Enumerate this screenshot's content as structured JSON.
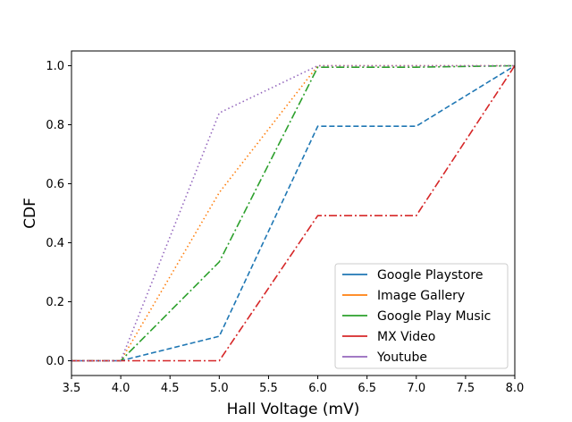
{
  "chart_data": {
    "type": "line",
    "title": "",
    "xlabel": "Hall Voltage (mV)",
    "ylabel": "CDF",
    "xlim": [
      3.5,
      8.0
    ],
    "ylim": [
      -0.05,
      1.05
    ],
    "xticks": [
      "3.5",
      "4.0",
      "4.5",
      "5.0",
      "5.5",
      "6.0",
      "6.5",
      "7.0",
      "7.5",
      "8.0"
    ],
    "yticks": [
      "0.0",
      "0.2",
      "0.4",
      "0.6",
      "0.8",
      "1.0"
    ],
    "grid": false,
    "legend_position": "lower-right",
    "series": [
      {
        "name": "Google Playstore",
        "color": "#1f77b4",
        "style": "dashed",
        "x": [
          3.5,
          4.0,
          5.0,
          6.0,
          7.0,
          8.0
        ],
        "y": [
          0.0,
          0.0,
          0.083,
          0.795,
          0.795,
          1.0
        ]
      },
      {
        "name": "Image Gallery",
        "color": "#ff7f0e",
        "style": "dotted",
        "x": [
          3.5,
          4.0,
          5.0,
          6.0,
          7.0,
          8.0
        ],
        "y": [
          0.0,
          0.0,
          0.57,
          1.0,
          1.0,
          1.0
        ]
      },
      {
        "name": "Google Play Music",
        "color": "#2ca02c",
        "style": "dashdot",
        "x": [
          3.5,
          4.0,
          5.0,
          6.0,
          7.0,
          8.0
        ],
        "y": [
          0.0,
          0.0,
          0.335,
          0.995,
          0.995,
          1.0
        ]
      },
      {
        "name": "MX Video",
        "color": "#d62728",
        "style": "dashdot",
        "x": [
          3.5,
          4.0,
          5.0,
          6.0,
          7.0,
          8.0
        ],
        "y": [
          0.0,
          0.0,
          0.0,
          0.492,
          0.492,
          1.0
        ]
      },
      {
        "name": "Youtube",
        "color": "#9467bd",
        "style": "dotted",
        "x": [
          3.5,
          4.0,
          5.0,
          6.0,
          7.0,
          8.0
        ],
        "y": [
          0.0,
          0.0,
          0.84,
          1.0,
          1.0,
          1.0
        ]
      }
    ]
  }
}
